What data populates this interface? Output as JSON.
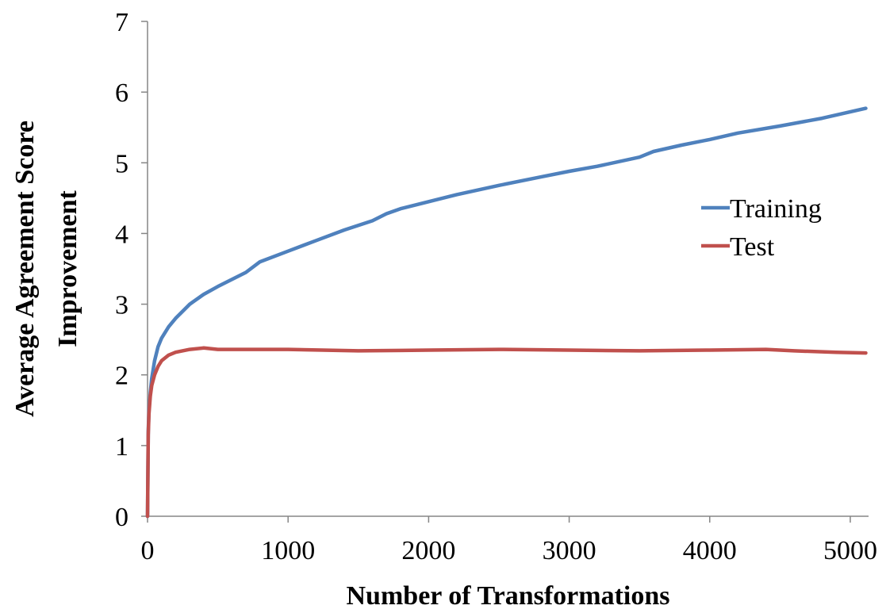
{
  "chart_data": {
    "type": "line",
    "title": "",
    "xlabel": "Number of Transformations",
    "ylabel_lines": [
      "Average Agreement Score",
      "Improvement"
    ],
    "xlim": [
      0,
      5130
    ],
    "ylim": [
      0,
      7
    ],
    "xticks": [
      0,
      1000,
      2000,
      3000,
      4000,
      5000
    ],
    "yticks": [
      0,
      1,
      2,
      3,
      4,
      5,
      6,
      7
    ],
    "grid": false,
    "legend_position": "right-center",
    "series": [
      {
        "name": "Training",
        "color": "#4F81BD",
        "x": [
          0,
          5,
          10,
          20,
          30,
          50,
          75,
          100,
          150,
          200,
          300,
          400,
          500,
          600,
          700,
          800,
          1000,
          1200,
          1400,
          1600,
          1700,
          1800,
          2000,
          2200,
          2500,
          2800,
          3000,
          3200,
          3500,
          3600,
          3800,
          4000,
          4200,
          4500,
          4800,
          5110
        ],
        "y": [
          0,
          1.2,
          1.5,
          1.75,
          1.95,
          2.2,
          2.4,
          2.52,
          2.68,
          2.8,
          3.0,
          3.14,
          3.25,
          3.35,
          3.45,
          3.6,
          3.75,
          3.9,
          4.05,
          4.18,
          4.28,
          4.35,
          4.45,
          4.55,
          4.68,
          4.8,
          4.88,
          4.95,
          5.08,
          5.16,
          5.25,
          5.33,
          5.42,
          5.52,
          5.63,
          5.77
        ]
      },
      {
        "name": "Test",
        "color": "#C0504D",
        "x": [
          0,
          5,
          10,
          20,
          30,
          50,
          75,
          100,
          150,
          200,
          300,
          400,
          500,
          700,
          1000,
          1500,
          2000,
          2500,
          3000,
          3500,
          4000,
          4400,
          4600,
          4900,
          5110
        ],
        "y": [
          0,
          1.15,
          1.45,
          1.7,
          1.85,
          2.0,
          2.12,
          2.2,
          2.28,
          2.32,
          2.36,
          2.38,
          2.36,
          2.36,
          2.36,
          2.34,
          2.35,
          2.36,
          2.35,
          2.34,
          2.35,
          2.36,
          2.34,
          2.32,
          2.31
        ]
      }
    ]
  }
}
